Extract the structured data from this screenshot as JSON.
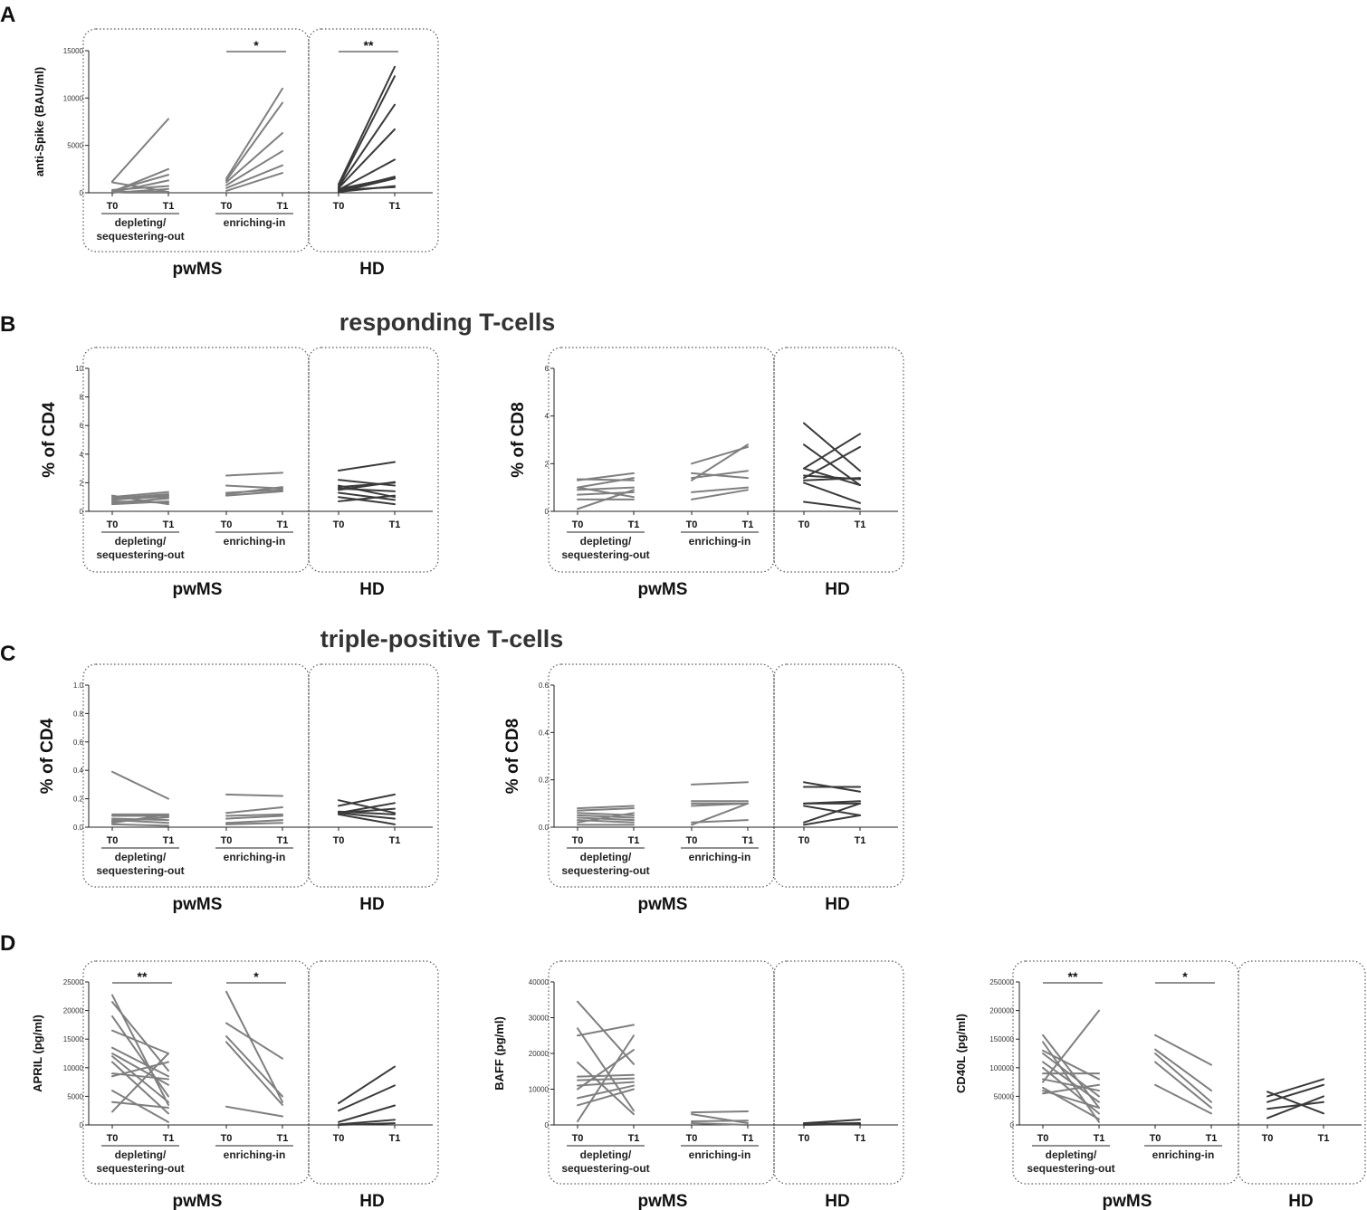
{
  "panels": {
    "A": "A",
    "B": "B",
    "C": "C",
    "D": "D"
  },
  "titles": {
    "responding": "responding T-cells",
    "triple": "triple-positive T-cells"
  },
  "colors": {
    "pwms": "#7f7f7f",
    "hd": "#3a3a3a",
    "axis": "#222222",
    "box": "#555555"
  },
  "chart_data": [
    {
      "id": "A",
      "type": "line",
      "ylabel": "anti-Spike (BAU/ml)",
      "ylim": [
        0,
        15000
      ],
      "yticks": [
        0,
        5000,
        10000,
        15000
      ],
      "tick_labels": [
        "0",
        "5000",
        "10000",
        "15000"
      ],
      "x_labels": [
        "T0",
        "T1"
      ],
      "groups": [
        {
          "label": "depleting/\nsequestering-out",
          "cohort": "pwMS",
          "series": [
            [
              1200,
              7800
            ],
            [
              100,
              2500
            ],
            [
              200,
              1900
            ],
            [
              50,
              1300
            ],
            [
              300,
              700
            ],
            [
              0,
              400
            ],
            [
              100,
              100
            ],
            [
              1100,
              100
            ]
          ]
        },
        {
          "label": "enriching-in",
          "cohort": "pwMS",
          "significance": "*",
          "series": [
            [
              1500,
              11000
            ],
            [
              1300,
              9500
            ],
            [
              1100,
              6300
            ],
            [
              800,
              4400
            ],
            [
              500,
              2900
            ],
            [
              200,
              2100
            ]
          ]
        },
        {
          "label": "",
          "cohort": "HD",
          "significance": "**",
          "series": [
            [
              900,
              13300
            ],
            [
              700,
              12300
            ],
            [
              600,
              9300
            ],
            [
              500,
              6700
            ],
            [
              300,
              3500
            ],
            [
              200,
              1700
            ],
            [
              400,
              1600
            ],
            [
              100,
              1500
            ],
            [
              100,
              700
            ],
            [
              300,
              600
            ]
          ]
        }
      ],
      "cohorts": [
        "pwMS",
        "HD"
      ]
    },
    {
      "id": "B1",
      "type": "line",
      "ylabel": "% of CD4",
      "ylim": [
        0,
        10
      ],
      "yticks": [
        0,
        2,
        4,
        6,
        8,
        10
      ],
      "tick_labels": [
        "0",
        "2",
        "4",
        "6",
        "8",
        "10"
      ],
      "x_labels": [
        "T0",
        "T1"
      ],
      "groups": [
        {
          "label": "depleting/\nsequestering-out",
          "cohort": "pwMS",
          "series": [
            [
              1.0,
              1.35
            ],
            [
              0.9,
              1.2
            ],
            [
              0.8,
              1.1
            ],
            [
              0.6,
              0.9
            ],
            [
              0.5,
              0.7
            ],
            [
              1.1,
              0.5
            ],
            [
              0.7,
              0.6
            ],
            [
              0.9,
              1.0
            ]
          ]
        },
        {
          "label": "enriching-in",
          "cohort": "pwMS",
          "series": [
            [
              2.5,
              2.7
            ],
            [
              1.8,
              1.6
            ],
            [
              1.3,
              1.5
            ],
            [
              1.1,
              1.4
            ],
            [
              1.2,
              1.7
            ]
          ]
        },
        {
          "label": "",
          "cohort": "HD",
          "series": [
            [
              2.85,
              3.45
            ],
            [
              2.2,
              1.8
            ],
            [
              1.7,
              2.0
            ],
            [
              1.5,
              2.05
            ],
            [
              1.6,
              1.4
            ],
            [
              1.3,
              0.8
            ],
            [
              1.0,
              0.5
            ],
            [
              0.7,
              1.1
            ],
            [
              1.8,
              1.0
            ]
          ]
        }
      ],
      "cohorts": [
        "pwMS",
        "HD"
      ]
    },
    {
      "id": "B2",
      "type": "line",
      "ylabel": "% of CD8",
      "ylim": [
        0,
        6
      ],
      "yticks": [
        0,
        2,
        4,
        6
      ],
      "tick_labels": [
        "0",
        "2",
        "4",
        "6"
      ],
      "x_labels": [
        "T0",
        "T1"
      ],
      "groups": [
        {
          "label": "depleting/\nsequestering-out",
          "cohort": "pwMS",
          "series": [
            [
              1.3,
              1.6
            ],
            [
              1.35,
              1.3
            ],
            [
              1.0,
              1.4
            ],
            [
              0.9,
              1.0
            ],
            [
              0.7,
              0.8
            ],
            [
              0.5,
              0.5
            ],
            [
              0.1,
              0.9
            ],
            [
              1.0,
              0.6
            ]
          ]
        },
        {
          "label": "enriching-in",
          "cohort": "pwMS",
          "series": [
            [
              2.0,
              2.7
            ],
            [
              1.3,
              2.8
            ],
            [
              1.6,
              1.4
            ],
            [
              1.4,
              1.7
            ],
            [
              0.8,
              1.0
            ],
            [
              0.5,
              0.9
            ]
          ]
        },
        {
          "label": "",
          "cohort": "HD",
          "series": [
            [
              3.7,
              1.7
            ],
            [
              2.8,
              1.1
            ],
            [
              1.8,
              3.25
            ],
            [
              1.4,
              2.7
            ],
            [
              1.3,
              1.4
            ],
            [
              1.5,
              1.35
            ],
            [
              1.2,
              0.35
            ],
            [
              0.4,
              0.1
            ],
            [
              1.8,
              1.1
            ]
          ]
        }
      ],
      "cohorts": [
        "pwMS",
        "HD"
      ]
    },
    {
      "id": "C1",
      "type": "line",
      "ylabel": "% of CD4",
      "ylim": [
        0,
        1.0
      ],
      "yticks": [
        0,
        0.2,
        0.4,
        0.6,
        0.8,
        1.0
      ],
      "tick_labels": [
        "0.0",
        "0.2",
        "0.4",
        "0.6",
        "0.8",
        "1.0"
      ],
      "x_labels": [
        "T0",
        "T1"
      ],
      "groups": [
        {
          "label": "depleting/\nsequestering-out",
          "cohort": "pwMS",
          "series": [
            [
              0.39,
              0.2
            ],
            [
              0.09,
              0.09
            ],
            [
              0.08,
              0.08
            ],
            [
              0.06,
              0.05
            ],
            [
              0.04,
              0.07
            ],
            [
              0.02,
              0.01
            ],
            [
              0.05,
              0.03
            ],
            [
              0.03,
              0.09
            ]
          ]
        },
        {
          "label": "enriching-in",
          "cohort": "pwMS",
          "series": [
            [
              0.23,
              0.22
            ],
            [
              0.1,
              0.14
            ],
            [
              0.08,
              0.09
            ],
            [
              0.06,
              0.08
            ],
            [
              0.03,
              0.05
            ],
            [
              0.02,
              0.03
            ]
          ]
        },
        {
          "label": "",
          "cohort": "HD",
          "series": [
            [
              0.19,
              0.1
            ],
            [
              0.15,
              0.23
            ],
            [
              0.1,
              0.17
            ],
            [
              0.1,
              0.13
            ],
            [
              0.11,
              0.09
            ],
            [
              0.1,
              0.06
            ],
            [
              0.09,
              0.02
            ]
          ]
        }
      ],
      "cohorts": [
        "pwMS",
        "HD"
      ]
    },
    {
      "id": "C2",
      "type": "line",
      "ylabel": "% of CD8",
      "ylim": [
        0,
        0.6
      ],
      "yticks": [
        0,
        0.2,
        0.4,
        0.6
      ],
      "tick_labels": [
        "0.0",
        "0.2",
        "0.4",
        "0.6"
      ],
      "x_labels": [
        "T0",
        "T1"
      ],
      "groups": [
        {
          "label": "depleting/\nsequestering-out",
          "cohort": "pwMS",
          "series": [
            [
              0.08,
              0.09
            ],
            [
              0.07,
              0.08
            ],
            [
              0.06,
              0.05
            ],
            [
              0.05,
              0.04
            ],
            [
              0.04,
              0.03
            ],
            [
              0.03,
              0.02
            ],
            [
              0.02,
              0.06
            ],
            [
              0.01,
              0.01
            ]
          ]
        },
        {
          "label": "enriching-in",
          "cohort": "pwMS",
          "series": [
            [
              0.18,
              0.19
            ],
            [
              0.11,
              0.11
            ],
            [
              0.1,
              0.1
            ],
            [
              0.09,
              0.1
            ],
            [
              0.02,
              0.03
            ],
            [
              0.01,
              0.1
            ]
          ]
        },
        {
          "label": "",
          "cohort": "HD",
          "series": [
            [
              0.19,
              0.15
            ],
            [
              0.17,
              0.17
            ],
            [
              0.1,
              0.1
            ],
            [
              0.1,
              0.11
            ],
            [
              0.09,
              0.05
            ],
            [
              0.02,
              0.1
            ],
            [
              0.01,
              0.05
            ]
          ]
        }
      ],
      "cohorts": [
        "pwMS",
        "HD"
      ]
    },
    {
      "id": "D1",
      "type": "line",
      "ylabel": "APRIL (pg/ml)",
      "ylim": [
        0,
        25000
      ],
      "yticks": [
        0,
        5000,
        10000,
        15000,
        20000,
        25000
      ],
      "tick_labels": [
        "0",
        "5000",
        "10000",
        "15000",
        "20000",
        "25000"
      ],
      "x_labels": [
        "T0",
        "T1"
      ],
      "groups": [
        {
          "label": "depleting/\nsequestering-out",
          "cohort": "pwMS",
          "significance": "**",
          "series": [
            [
              22700,
              3500
            ],
            [
              21500,
              9500
            ],
            [
              19000,
              5000
            ],
            [
              16500,
              12500
            ],
            [
              13500,
              8500
            ],
            [
              12500,
              7000
            ],
            [
              12000,
              4000
            ],
            [
              11000,
              2000
            ],
            [
              9000,
              8000
            ],
            [
              8500,
              11000
            ],
            [
              6000,
              500
            ],
            [
              2300,
              12500
            ],
            [
              4000,
              3000
            ]
          ]
        },
        {
          "label": "enriching-in",
          "cohort": "pwMS",
          "significance": "*",
          "series": [
            [
              23300,
              4000
            ],
            [
              17800,
              11600
            ],
            [
              15500,
              5000
            ],
            [
              14500,
              3500
            ],
            [
              3200,
              1500
            ]
          ]
        },
        {
          "label": "",
          "cohort": "HD",
          "series": [
            [
              3800,
              10200
            ],
            [
              2500,
              6900
            ],
            [
              500,
              3400
            ],
            [
              100,
              900
            ],
            [
              0,
              300
            ]
          ]
        }
      ],
      "cohorts": [
        "pwMS",
        "HD"
      ]
    },
    {
      "id": "D2",
      "type": "line",
      "ylabel": "BAFF (pg/ml)",
      "ylim": [
        0,
        40000
      ],
      "yticks": [
        0,
        10000,
        20000,
        30000,
        40000
      ],
      "tick_labels": [
        "0",
        "10000",
        "20000",
        "30000",
        "40000"
      ],
      "x_labels": [
        "T0",
        "T1"
      ],
      "groups": [
        {
          "label": "depleting/\nsequestering-out",
          "cohort": "pwMS",
          "series": [
            [
              34500,
              17000
            ],
            [
              27000,
              4000
            ],
            [
              25000,
              28000
            ],
            [
              17500,
              3000
            ],
            [
              13500,
              14000
            ],
            [
              12500,
              13000
            ],
            [
              11000,
              12000
            ],
            [
              10000,
              21000
            ],
            [
              7500,
              11000
            ],
            [
              5500,
              10000
            ],
            [
              1000,
              25000
            ]
          ]
        },
        {
          "label": "enriching-in",
          "cohort": "pwMS",
          "series": [
            [
              3500,
              3800
            ],
            [
              3000,
              500
            ],
            [
              1000,
              1200
            ],
            [
              500,
              0
            ]
          ]
        },
        {
          "label": "",
          "cohort": "HD",
          "series": [
            [
              500,
              1500
            ],
            [
              300,
              500
            ],
            [
              0,
              300
            ]
          ]
        }
      ],
      "cohorts": [
        "pwMS",
        "HD"
      ]
    },
    {
      "id": "D3",
      "type": "line",
      "ylabel": "CD40L (pg/ml)",
      "ylim": [
        0,
        250000
      ],
      "yticks": [
        0,
        50000,
        100000,
        150000,
        200000,
        250000
      ],
      "tick_labels": [
        "0",
        "50000",
        "100000",
        "150000",
        "200000",
        "250000"
      ],
      "x_labels": [
        "T0",
        "T1"
      ],
      "groups": [
        {
          "label": "depleting/\nsequestering-out",
          "cohort": "pwMS",
          "significance": "**",
          "series": [
            [
              157000,
              30000
            ],
            [
              145000,
              5000
            ],
            [
              130000,
              80000
            ],
            [
              125000,
              50000
            ],
            [
              110000,
              40000
            ],
            [
              100000,
              20000
            ],
            [
              90000,
              90000
            ],
            [
              80000,
              60000
            ],
            [
              75000,
              200000
            ],
            [
              65000,
              10000
            ],
            [
              55000,
              70000
            ],
            [
              60000,
              30000
            ]
          ]
        },
        {
          "label": "enriching-in",
          "cohort": "pwMS",
          "significance": "*",
          "series": [
            [
              157000,
              105000
            ],
            [
              132000,
              60000
            ],
            [
              125000,
              40000
            ],
            [
              110000,
              30000
            ],
            [
              70000,
              20000
            ]
          ]
        },
        {
          "label": "",
          "cohort": "HD",
          "series": [
            [
              58000,
              20000
            ],
            [
              50000,
              80000
            ],
            [
              40000,
              70000
            ],
            [
              28000,
              40000
            ],
            [
              12000,
              50000
            ]
          ]
        }
      ],
      "cohorts": [
        "pwMS",
        "HD"
      ]
    }
  ]
}
